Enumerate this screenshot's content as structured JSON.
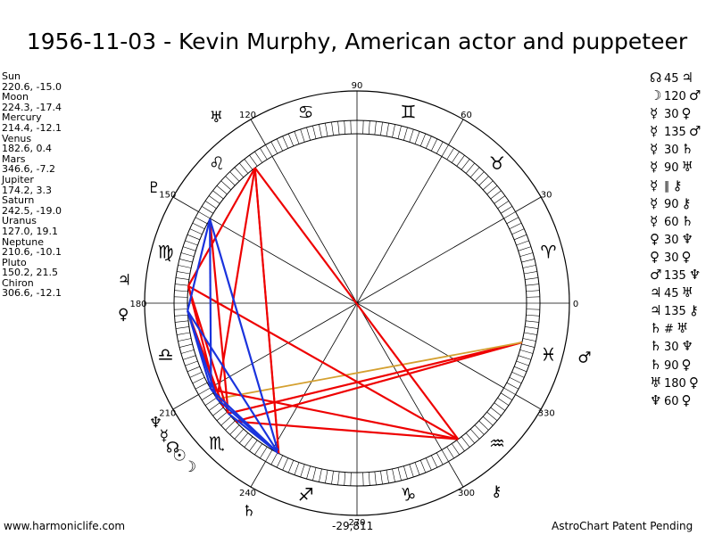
{
  "title": "1956-11-03 - Kevin Murphy, American actor and puppeteer",
  "footer": {
    "site": "www.harmoniclife.com",
    "coord": "-29,811",
    "notice": "AstroChart Patent Pending"
  },
  "planet_list": [
    {
      "name": "Sun",
      "values": "220.6, -15.0"
    },
    {
      "name": "Moon",
      "values": "224.3, -17.4"
    },
    {
      "name": "Mercury",
      "values": "214.4, -12.1"
    },
    {
      "name": "Venus",
      "values": "182.6, 0.4"
    },
    {
      "name": "Mars",
      "values": "346.6, -7.2"
    },
    {
      "name": "Jupiter",
      "values": "174.2, 3.3"
    },
    {
      "name": "Saturn",
      "values": "242.5, -19.0"
    },
    {
      "name": "Uranus",
      "values": "127.0, 19.1"
    },
    {
      "name": "Neptune",
      "values": "210.6, -10.1"
    },
    {
      "name": "Pluto",
      "values": "150.2, 21.5"
    },
    {
      "name": "Chiron",
      "values": "306.6, -12.1"
    }
  ],
  "aspect_list": [
    {
      "p1": "☊",
      "angle": "45",
      "p2": "♃"
    },
    {
      "p1": "☽",
      "angle": "120",
      "p2": "♂"
    },
    {
      "p1": "☿",
      "angle": "30",
      "p2": "♀"
    },
    {
      "p1": "☿",
      "angle": "135",
      "p2": "♂"
    },
    {
      "p1": "☿",
      "angle": "30",
      "p2": "♄"
    },
    {
      "p1": "☿",
      "angle": "90",
      "p2": "♅"
    },
    {
      "p1": "☿",
      "angle": "∥",
      "p2": "⚷"
    },
    {
      "p1": "☿",
      "angle": "90",
      "p2": "⚷"
    },
    {
      "p1": "☿",
      "angle": "60",
      "p2": "♄"
    },
    {
      "p1": "♀",
      "angle": "30",
      "p2": "♆"
    },
    {
      "p1": "♀",
      "angle": "30",
      "p2": "♀"
    },
    {
      "p1": "♂",
      "angle": "135",
      "p2": "♆"
    },
    {
      "p1": "♃",
      "angle": "45",
      "p2": "♅"
    },
    {
      "p1": "♃",
      "angle": "135",
      "p2": "⚷"
    },
    {
      "p1": "♄",
      "angle": "#",
      "p2": "♅"
    },
    {
      "p1": "♄",
      "angle": "30",
      "p2": "♆"
    },
    {
      "p1": "♄",
      "angle": "90",
      "p2": "♀"
    },
    {
      "p1": "♅",
      "angle": "180",
      "p2": "♀"
    },
    {
      "p1": "♆",
      "angle": "60",
      "p2": "♀"
    }
  ],
  "chart_data": {
    "type": "astrology_wheel",
    "degree_labels": [
      "0",
      "30",
      "60",
      "90",
      "120",
      "150",
      "180",
      "210",
      "240",
      "270",
      "300",
      "330"
    ],
    "zodiac_signs": [
      "♈",
      "♉",
      "♊",
      "♋",
      "♌",
      "♍",
      "♎",
      "♏",
      "♐",
      "♑",
      "♒",
      "♓"
    ],
    "bodies": [
      {
        "glyph": "☉",
        "name": "Sun",
        "longitude": 220.6
      },
      {
        "glyph": "☽",
        "name": "Moon",
        "longitude": 224.3
      },
      {
        "glyph": "☿",
        "name": "Mercury",
        "longitude": 214.4
      },
      {
        "glyph": "♀",
        "name": "Venus",
        "longitude": 182.6
      },
      {
        "glyph": "♂",
        "name": "Mars",
        "longitude": 346.6
      },
      {
        "glyph": "♃",
        "name": "Jupiter",
        "longitude": 174.2
      },
      {
        "glyph": "♄",
        "name": "Saturn",
        "longitude": 242.5
      },
      {
        "glyph": "♅",
        "name": "Uranus",
        "longitude": 127.0
      },
      {
        "glyph": "♆",
        "name": "Neptune",
        "longitude": 210.6
      },
      {
        "glyph": "♇",
        "name": "Pluto",
        "longitude": 150.2
      },
      {
        "glyph": "⚷",
        "name": "Chiron",
        "longitude": 306.6
      },
      {
        "glyph": "☊",
        "name": "Node",
        "longitude": 218.0
      }
    ],
    "aspect_lines": [
      {
        "from": 220.6,
        "to": 346.6,
        "kind": "hard"
      },
      {
        "from": 224.3,
        "to": 346.6,
        "kind": "hard"
      },
      {
        "from": 214.4,
        "to": 346.6,
        "kind": "minor"
      },
      {
        "from": 224.3,
        "to": 306.6,
        "kind": "hard"
      },
      {
        "from": 210.6,
        "to": 306.6,
        "kind": "hard"
      },
      {
        "from": 174.2,
        "to": 306.6,
        "kind": "hard"
      },
      {
        "from": 127.0,
        "to": 306.6,
        "kind": "hard"
      },
      {
        "from": 127.0,
        "to": 214.4,
        "kind": "hard"
      },
      {
        "from": 127.0,
        "to": 174.2,
        "kind": "hard"
      },
      {
        "from": 127.0,
        "to": 242.5,
        "kind": "hard"
      },
      {
        "from": 150.2,
        "to": 220.6,
        "kind": "hard"
      },
      {
        "from": 174.2,
        "to": 220.6,
        "kind": "hard"
      },
      {
        "from": 174.2,
        "to": 214.4,
        "kind": "hard"
      },
      {
        "from": 182.6,
        "to": 218.0,
        "kind": "hard"
      },
      {
        "from": 182.6,
        "to": 242.5,
        "kind": "soft"
      },
      {
        "from": 182.6,
        "to": 214.4,
        "kind": "soft"
      },
      {
        "from": 150.2,
        "to": 242.5,
        "kind": "soft"
      },
      {
        "from": 150.2,
        "to": 210.6,
        "kind": "soft"
      },
      {
        "from": 150.2,
        "to": 182.6,
        "kind": "soft"
      },
      {
        "from": 214.4,
        "to": 242.5,
        "kind": "soft"
      },
      {
        "from": 210.6,
        "to": 242.5,
        "kind": "soft"
      },
      {
        "from": 220.6,
        "to": 242.5,
        "kind": "soft"
      },
      {
        "from": 182.6,
        "to": 210.6,
        "kind": "soft"
      },
      {
        "from": 127.0,
        "to": 242.5,
        "kind": "dotted"
      }
    ],
    "colors": {
      "hard": "#ee0000",
      "soft": "#1a33dd",
      "minor": "#d4a030"
    }
  }
}
